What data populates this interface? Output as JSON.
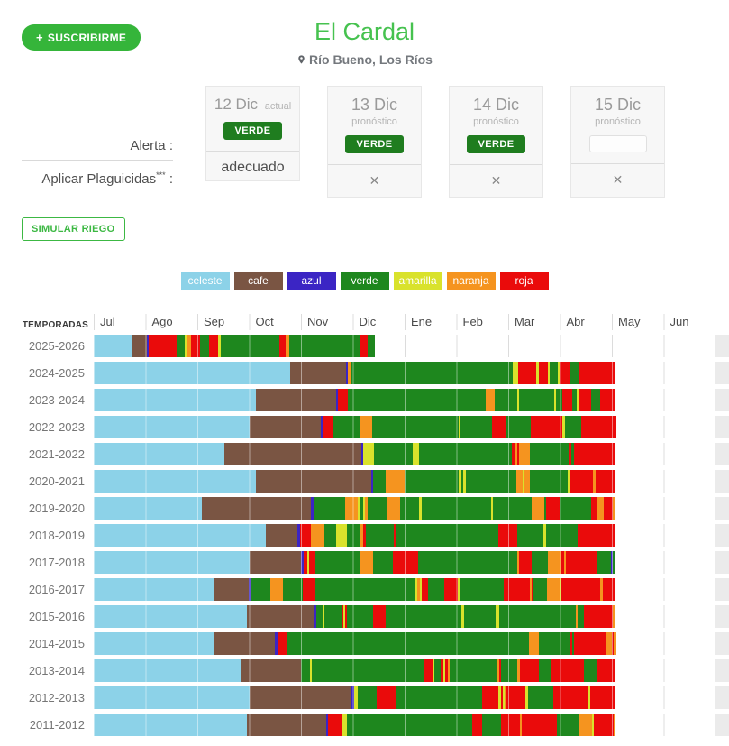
{
  "theme": {
    "accent_green": "#35b53a",
    "title_green": "#46c24f",
    "badge_green": "#1f7d1f"
  },
  "header": {
    "subscribe_plus": "+",
    "subscribe_label": "SUSCRIBIRME",
    "title": "El Cardal",
    "location": "Río Bueno, Los Ríos"
  },
  "alerts": {
    "alerta_label": "Alerta :",
    "plaguicidas_label": "Aplicar Plaguicidas",
    "plaguicidas_sup": "***",
    "plaguicidas_colon": " :"
  },
  "cards": [
    {
      "date": "12 Dic",
      "tag": "actual",
      "badge": "VERDE",
      "footer": "adecuado"
    },
    {
      "date": "13 Dic",
      "tag": "pronóstico",
      "badge": "VERDE",
      "footer": "✕"
    },
    {
      "date": "14 Dic",
      "tag": "pronóstico",
      "badge": "VERDE",
      "footer": "✕"
    },
    {
      "date": "15 Dic",
      "tag": "pronóstico",
      "badge": "",
      "footer": "✕"
    }
  ],
  "simulate_label": "SIMULAR RIEGO",
  "legend": [
    {
      "label": "celeste",
      "color": "#8cd2e8"
    },
    {
      "label": "cafe",
      "color": "#7a5543"
    },
    {
      "label": "azul",
      "color": "#3b25c4"
    },
    {
      "label": "verde",
      "color": "#1e871e"
    },
    {
      "label": "amarilla",
      "color": "#d9e22c"
    },
    {
      "label": "naranja",
      "color": "#f5941f"
    },
    {
      "label": "roja",
      "color": "#ea0b0b"
    }
  ],
  "chart_data": {
    "type": "bar",
    "variant": "horizontal-stacked-timeline",
    "temporadas_label": "TEMPORADAS",
    "months": [
      "Jul",
      "Ago",
      "Sep",
      "Oct",
      "Nov",
      "Dic",
      "Ene",
      "Feb",
      "Mar",
      "Abr",
      "May",
      "Jun"
    ],
    "axis_note": "segment widths are percent of the Jul-Jun axis; full seasons end ≈84% (end of April), 2025-2026 ends ≈45% (12 Dic)",
    "colors": {
      "ce": "#8cd2e8",
      "ca": "#7a5543",
      "az": "#3b25c4",
      "ve": "#1e871e",
      "am": "#d9e22c",
      "na": "#f5941f",
      "ro": "#ea0b0b"
    },
    "color_names": {
      "ce": "celeste",
      "ca": "cafe",
      "az": "azul",
      "ve": "verde",
      "am": "amarilla",
      "na": "naranja",
      "ro": "roja"
    },
    "rows": [
      {
        "label": "2025-2026",
        "segments": [
          [
            "ce",
            6.2
          ],
          [
            "ca",
            2.3
          ],
          [
            "az",
            0.4
          ],
          [
            "ro",
            4.5
          ],
          [
            "ve",
            1.2
          ],
          [
            "am",
            0.4
          ],
          [
            "na",
            0.6
          ],
          [
            "ro",
            1.5
          ],
          [
            "ve",
            1.4
          ],
          [
            "ro",
            1.5
          ],
          [
            "am",
            0.4
          ],
          [
            "ve",
            9.5
          ],
          [
            "ro",
            1.0
          ],
          [
            "na",
            0.5
          ],
          [
            "ve",
            11.4
          ],
          [
            "ro",
            1.3
          ],
          [
            "ve",
            1.2
          ]
        ]
      },
      {
        "label": "2024-2025",
        "segments": [
          [
            "ce",
            31.6
          ],
          [
            "ca",
            9.0
          ],
          [
            "az",
            0.3
          ],
          [
            "na",
            0.4
          ],
          [
            "ve",
            26.1
          ],
          [
            "am",
            0.8
          ],
          [
            "ro",
            3.0
          ],
          [
            "am",
            0.4
          ],
          [
            "ro",
            1.5
          ],
          [
            "am",
            0.3
          ],
          [
            "ve",
            1.2
          ],
          [
            "am",
            0.3
          ],
          [
            "ro",
            1.6
          ],
          [
            "ve",
            1.5
          ],
          [
            "ro",
            6.0
          ]
        ]
      },
      {
        "label": "2023-2024",
        "segments": [
          [
            "ce",
            26.1
          ],
          [
            "ca",
            12.9
          ],
          [
            "az",
            0.3
          ],
          [
            "ro",
            1.6
          ],
          [
            "ve",
            22.1
          ],
          [
            "na",
            1.5
          ],
          [
            "ve",
            3.6
          ],
          [
            "am",
            0.3
          ],
          [
            "ve",
            5.7
          ],
          [
            "am",
            0.3
          ],
          [
            "ve",
            1.0
          ],
          [
            "ro",
            1.5
          ],
          [
            "ve",
            0.8
          ],
          [
            "am",
            0.3
          ],
          [
            "ro",
            2.0
          ],
          [
            "ve",
            1.5
          ],
          [
            "ro",
            2.5
          ]
        ]
      },
      {
        "label": "2022-2023",
        "segments": [
          [
            "ce",
            25.1
          ],
          [
            "ca",
            11.4
          ],
          [
            "az",
            0.3
          ],
          [
            "ro",
            1.8
          ],
          [
            "ve",
            4.1
          ],
          [
            "na",
            2.1
          ],
          [
            "ve",
            13.9
          ],
          [
            "am",
            0.3
          ],
          [
            "ve",
            5.1
          ],
          [
            "ro",
            2.1
          ],
          [
            "ve",
            4.1
          ],
          [
            "ro",
            5.1
          ],
          [
            "am",
            0.4
          ],
          [
            "ve",
            2.6
          ],
          [
            "ro",
            5.6
          ]
        ]
      },
      {
        "label": "2021-2022",
        "segments": [
          [
            "ce",
            21.0
          ],
          [
            "ca",
            22.0
          ],
          [
            "az",
            0.3
          ],
          [
            "am",
            1.8
          ],
          [
            "ve",
            6.2
          ],
          [
            "am",
            1.0
          ],
          [
            "ve",
            15.0
          ],
          [
            "ro",
            0.5
          ],
          [
            "na",
            0.3
          ],
          [
            "ro",
            0.3
          ],
          [
            "na",
            1.8
          ],
          [
            "ve",
            6.2
          ],
          [
            "ro",
            0.4
          ],
          [
            "ve",
            0.5
          ],
          [
            "ro",
            6.7
          ]
        ]
      },
      {
        "label": "2020-2021",
        "segments": [
          [
            "ce",
            26.1
          ],
          [
            "ca",
            18.5
          ],
          [
            "az",
            0.3
          ],
          [
            "ve",
            2.0
          ],
          [
            "na",
            3.1
          ],
          [
            "ve",
            8.7
          ],
          [
            "am",
            0.4
          ],
          [
            "ve",
            0.3
          ],
          [
            "am",
            0.4
          ],
          [
            "ve",
            8.2
          ],
          [
            "na",
            1.0
          ],
          [
            "am",
            0.3
          ],
          [
            "na",
            0.8
          ],
          [
            "ve",
            6.2
          ],
          [
            "am",
            0.4
          ],
          [
            "ro",
            3.6
          ],
          [
            "na",
            0.4
          ],
          [
            "ro",
            3.1
          ],
          [
            "na",
            0.2
          ]
        ]
      },
      {
        "label": "2019-2020",
        "segments": [
          [
            "ce",
            17.4
          ],
          [
            "ca",
            17.5
          ],
          [
            "az",
            0.4
          ],
          [
            "ve",
            5.1
          ],
          [
            "na",
            2.1
          ],
          [
            "am",
            0.3
          ],
          [
            "ve",
            0.5
          ],
          [
            "am",
            0.3
          ],
          [
            "na",
            0.5
          ],
          [
            "ve",
            3.1
          ],
          [
            "na",
            2.1
          ],
          [
            "ve",
            3.1
          ],
          [
            "am",
            0.4
          ],
          [
            "ve",
            11.1
          ],
          [
            "am",
            0.3
          ],
          [
            "ve",
            6.2
          ],
          [
            "na",
            2.1
          ],
          [
            "ve",
            0.3
          ],
          [
            "ro",
            2.1
          ],
          [
            "ve",
            5.1
          ],
          [
            "ro",
            1.0
          ],
          [
            "na",
            1.0
          ],
          [
            "ro",
            1.5
          ],
          [
            "na",
            0.5
          ]
        ]
      },
      {
        "label": "2018-2019",
        "segments": [
          [
            "ce",
            27.7
          ],
          [
            "ca",
            5.1
          ],
          [
            "az",
            0.4
          ],
          [
            "ro",
            1.7
          ],
          [
            "na",
            2.2
          ],
          [
            "ve",
            1.9
          ],
          [
            "am",
            1.7
          ],
          [
            "ve",
            2.2
          ],
          [
            "na",
            0.5
          ],
          [
            "ro",
            0.4
          ],
          [
            "ve",
            4.5
          ],
          [
            "ro",
            0.4
          ],
          [
            "ve",
            16.4
          ],
          [
            "ro",
            3.1
          ],
          [
            "ve",
            4.1
          ],
          [
            "am",
            0.4
          ],
          [
            "ve",
            5.1
          ],
          [
            "ro",
            6.2
          ]
        ]
      },
      {
        "label": "2017-2018",
        "segments": [
          [
            "ce",
            25.1
          ],
          [
            "ca",
            8.2
          ],
          [
            "az",
            0.4
          ],
          [
            "ro",
            0.7
          ],
          [
            "am",
            0.3
          ],
          [
            "ro",
            1.0
          ],
          [
            "ve",
            7.2
          ],
          [
            "na",
            2.1
          ],
          [
            "ve",
            3.1
          ],
          [
            "ro",
            4.1
          ],
          [
            "ve",
            15.9
          ],
          [
            "na",
            0.3
          ],
          [
            "ro",
            2.1
          ],
          [
            "ve",
            2.6
          ],
          [
            "na",
            2.1
          ],
          [
            "ro",
            0.5
          ],
          [
            "na",
            0.3
          ],
          [
            "ro",
            5.1
          ],
          [
            "ve",
            2.1
          ],
          [
            "az",
            0.3
          ],
          [
            "ve",
            0.5
          ]
        ]
      },
      {
        "label": "2016-2017",
        "segments": [
          [
            "ce",
            19.4
          ],
          [
            "ca",
            5.6
          ],
          [
            "az",
            0.3
          ],
          [
            "ve",
            3.1
          ],
          [
            "na",
            2.1
          ],
          [
            "ve",
            3.1
          ],
          [
            "ro",
            2.1
          ],
          [
            "ve",
            15.9
          ],
          [
            "am",
            0.4
          ],
          [
            "na",
            0.5
          ],
          [
            "am",
            0.3
          ],
          [
            "ro",
            1.0
          ],
          [
            "ve",
            2.6
          ],
          [
            "ro",
            2.1
          ],
          [
            "am",
            0.3
          ],
          [
            "ve",
            7.2
          ],
          [
            "ro",
            4.1
          ],
          [
            "na",
            0.4
          ],
          [
            "ro",
            0.3
          ],
          [
            "ve",
            2.1
          ],
          [
            "na",
            2.1
          ],
          [
            "am",
            0.3
          ],
          [
            "ro",
            6.2
          ],
          [
            "na",
            0.4
          ],
          [
            "ro",
            2.1
          ]
        ]
      },
      {
        "label": "2015-2016",
        "segments": [
          [
            "ce",
            24.6
          ],
          [
            "ca",
            10.8
          ],
          [
            "az",
            0.4
          ],
          [
            "ve",
            1.0
          ],
          [
            "am",
            0.3
          ],
          [
            "ve",
            2.8
          ],
          [
            "ro",
            0.3
          ],
          [
            "am",
            0.3
          ],
          [
            "ro",
            0.3
          ],
          [
            "ve",
            4.1
          ],
          [
            "ro",
            2.1
          ],
          [
            "ve",
            12.1
          ],
          [
            "am",
            0.5
          ],
          [
            "ve",
            5.1
          ],
          [
            "am",
            0.5
          ],
          [
            "ve",
            12.3
          ],
          [
            "na",
            0.4
          ],
          [
            "ve",
            1.0
          ],
          [
            "ro",
            4.6
          ],
          [
            "na",
            0.5
          ]
        ]
      },
      {
        "label": "2014-2015",
        "segments": [
          [
            "ce",
            19.4
          ],
          [
            "ca",
            9.8
          ],
          [
            "az",
            0.3
          ],
          [
            "ro",
            1.6
          ],
          [
            "ve",
            38.9
          ],
          [
            "na",
            1.6
          ],
          [
            "ve",
            5.1
          ],
          [
            "ro",
            0.3
          ],
          [
            "ve",
            0.3
          ],
          [
            "ro",
            5.1
          ],
          [
            "na",
            1.0
          ],
          [
            "ro",
            0.3
          ],
          [
            "na",
            0.3
          ]
        ]
      },
      {
        "label": "2013-2014",
        "segments": [
          [
            "ce",
            23.6
          ],
          [
            "ca",
            9.7
          ],
          [
            "ve",
            1.5
          ],
          [
            "am",
            0.3
          ],
          [
            "ve",
            17.9
          ],
          [
            "ro",
            1.5
          ],
          [
            "am",
            0.3
          ],
          [
            "ve",
            1.0
          ],
          [
            "ro",
            0.4
          ],
          [
            "am",
            0.3
          ],
          [
            "ro",
            0.4
          ],
          [
            "na",
            0.3
          ],
          [
            "ve",
            7.7
          ],
          [
            "na",
            0.3
          ],
          [
            "ro",
            0.3
          ],
          [
            "ve",
            2.6
          ],
          [
            "na",
            0.4
          ],
          [
            "ro",
            3.1
          ],
          [
            "ve",
            2.1
          ],
          [
            "ro",
            5.1
          ],
          [
            "ve",
            2.1
          ],
          [
            "ro",
            3.1
          ]
        ]
      },
      {
        "label": "2012-2013",
        "segments": [
          [
            "ce",
            25.1
          ],
          [
            "ca",
            16.4
          ],
          [
            "az",
            0.4
          ],
          [
            "am",
            0.5
          ],
          [
            "ve",
            3.1
          ],
          [
            "ro",
            3.1
          ],
          [
            "ve",
            13.9
          ],
          [
            "ro",
            2.6
          ],
          [
            "am",
            0.4
          ],
          [
            "ro",
            0.3
          ],
          [
            "am",
            0.3
          ],
          [
            "na",
            0.3
          ],
          [
            "ro",
            3.1
          ],
          [
            "am",
            0.3
          ],
          [
            "ve",
            4.1
          ],
          [
            "ro",
            5.6
          ],
          [
            "am",
            0.4
          ],
          [
            "ro",
            4.1
          ]
        ]
      },
      {
        "label": "2011-2012",
        "segments": [
          [
            "ce",
            24.6
          ],
          [
            "ca",
            12.8
          ],
          [
            "az",
            0.3
          ],
          [
            "ro",
            2.1
          ],
          [
            "am",
            1.0
          ],
          [
            "ve",
            20.1
          ],
          [
            "ro",
            1.5
          ],
          [
            "ve",
            3.1
          ],
          [
            "ro",
            3.1
          ],
          [
            "na",
            0.3
          ],
          [
            "ro",
            5.6
          ],
          [
            "ve",
            3.6
          ],
          [
            "na",
            2.1
          ],
          [
            "am",
            0.3
          ],
          [
            "ro",
            3.1
          ],
          [
            "na",
            0.4
          ]
        ]
      }
    ]
  }
}
